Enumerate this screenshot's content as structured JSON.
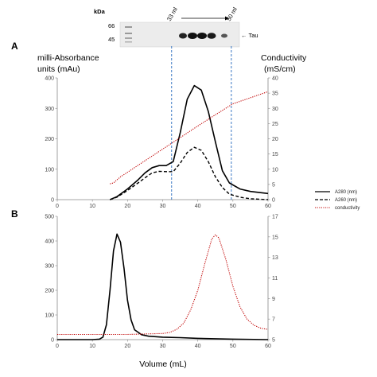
{
  "colors": {
    "a280": "#000000",
    "a260": "#000000",
    "conductivity": "#c00000",
    "marker_lines": "#3a78c4",
    "axis": "#888888"
  },
  "gel": {
    "unit_label": "kDa",
    "marker_labels": [
      "66",
      "45"
    ],
    "start_label": "33 ml",
    "end_label": "50 ml",
    "band_label": "← Tau"
  },
  "legend": {
    "items": [
      {
        "label": "A280 (nm)",
        "style": "solid"
      },
      {
        "label": "A260 (nm)",
        "style": "dashed"
      },
      {
        "label": "conductivity",
        "style": "dotted"
      }
    ]
  },
  "panels": {
    "a": {
      "letter": "A",
      "left_axis_title": [
        "milli-Absorbance",
        "units (mAu)"
      ],
      "right_axis_title": [
        "Conductivity",
        "(mS/cm)"
      ]
    },
    "b": {
      "letter": "B",
      "x_axis_title": "Volume (mL)"
    }
  },
  "chart_data": [
    {
      "type": "line",
      "panel": "A",
      "xlim": [
        0,
        60
      ],
      "x_ticks": [
        0,
        10,
        20,
        30,
        40,
        50,
        60
      ],
      "ylim": [
        0,
        400
      ],
      "y_ticks": [
        0,
        100,
        200,
        300,
        400
      ],
      "y2lim": [
        0,
        40
      ],
      "y2_ticks": [
        0,
        5,
        10,
        15,
        20,
        25,
        30,
        35,
        40
      ],
      "vertical_markers": [
        33,
        50
      ],
      "series": [
        {
          "name": "A280 (nm)",
          "axis": "left",
          "style": "solid",
          "x": [
            15,
            17,
            20,
            23,
            25,
            27,
            29,
            31,
            33,
            35,
            37,
            39,
            41,
            43,
            45,
            47,
            49,
            52,
            55,
            60
          ],
          "y": [
            0,
            10,
            35,
            65,
            88,
            105,
            112,
            112,
            125,
            220,
            330,
            375,
            360,
            290,
            190,
            95,
            55,
            35,
            27,
            20
          ]
        },
        {
          "name": "A260 (nm)",
          "axis": "left",
          "style": "dashed",
          "x": [
            15,
            17,
            20,
            23,
            25,
            27,
            29,
            31,
            33,
            35,
            37,
            39,
            41,
            43,
            45,
            47,
            49,
            52,
            55,
            60
          ],
          "y": [
            0,
            8,
            30,
            55,
            72,
            88,
            93,
            92,
            92,
            120,
            155,
            172,
            162,
            125,
            75,
            40,
            18,
            8,
            3,
            0
          ]
        },
        {
          "name": "conductivity",
          "axis": "right",
          "style": "dotted",
          "x": [
            15,
            16,
            17,
            18,
            20,
            25,
            30,
            35,
            40,
            45,
            50,
            55,
            60
          ],
          "y": [
            5.2,
            5.5,
            6.5,
            7.5,
            9.0,
            12.8,
            16.6,
            20.4,
            24.2,
            27.9,
            31.5,
            33.5,
            35.5
          ]
        }
      ]
    },
    {
      "type": "line",
      "panel": "B",
      "xlabel": "Volume (mL)",
      "xlim": [
        0,
        60
      ],
      "x_ticks": [
        0,
        10,
        20,
        30,
        40,
        50,
        60
      ],
      "ylim": [
        0,
        500
      ],
      "y_ticks": [
        0,
        100,
        200,
        300,
        400,
        500
      ],
      "y2lim": [
        5,
        17
      ],
      "y2_ticks": [
        5,
        7,
        9,
        11,
        13,
        15,
        17
      ],
      "series": [
        {
          "name": "A280 (nm)",
          "axis": "left",
          "style": "solid",
          "x": [
            0,
            10,
            12,
            13,
            14,
            15,
            16,
            17,
            18,
            19,
            20,
            21,
            22,
            24,
            26,
            30,
            35,
            40,
            50,
            60
          ],
          "y": [
            0,
            0,
            2,
            10,
            60,
            200,
            360,
            428,
            395,
            290,
            160,
            80,
            40,
            20,
            14,
            10,
            8,
            5,
            2,
            0
          ]
        },
        {
          "name": "conductivity",
          "axis": "right",
          "style": "dotted",
          "x": [
            0,
            20,
            30,
            32,
            34,
            36,
            38,
            40,
            42,
            44,
            45,
            46,
            48,
            50,
            52,
            54,
            56,
            58,
            60
          ],
          "y": [
            5.5,
            5.5,
            5.6,
            5.7,
            6.0,
            6.6,
            7.9,
            9.8,
            12.4,
            14.8,
            15.2,
            14.9,
            12.8,
            10.2,
            8.2,
            7.0,
            6.4,
            6.1,
            6.0
          ]
        }
      ]
    }
  ]
}
